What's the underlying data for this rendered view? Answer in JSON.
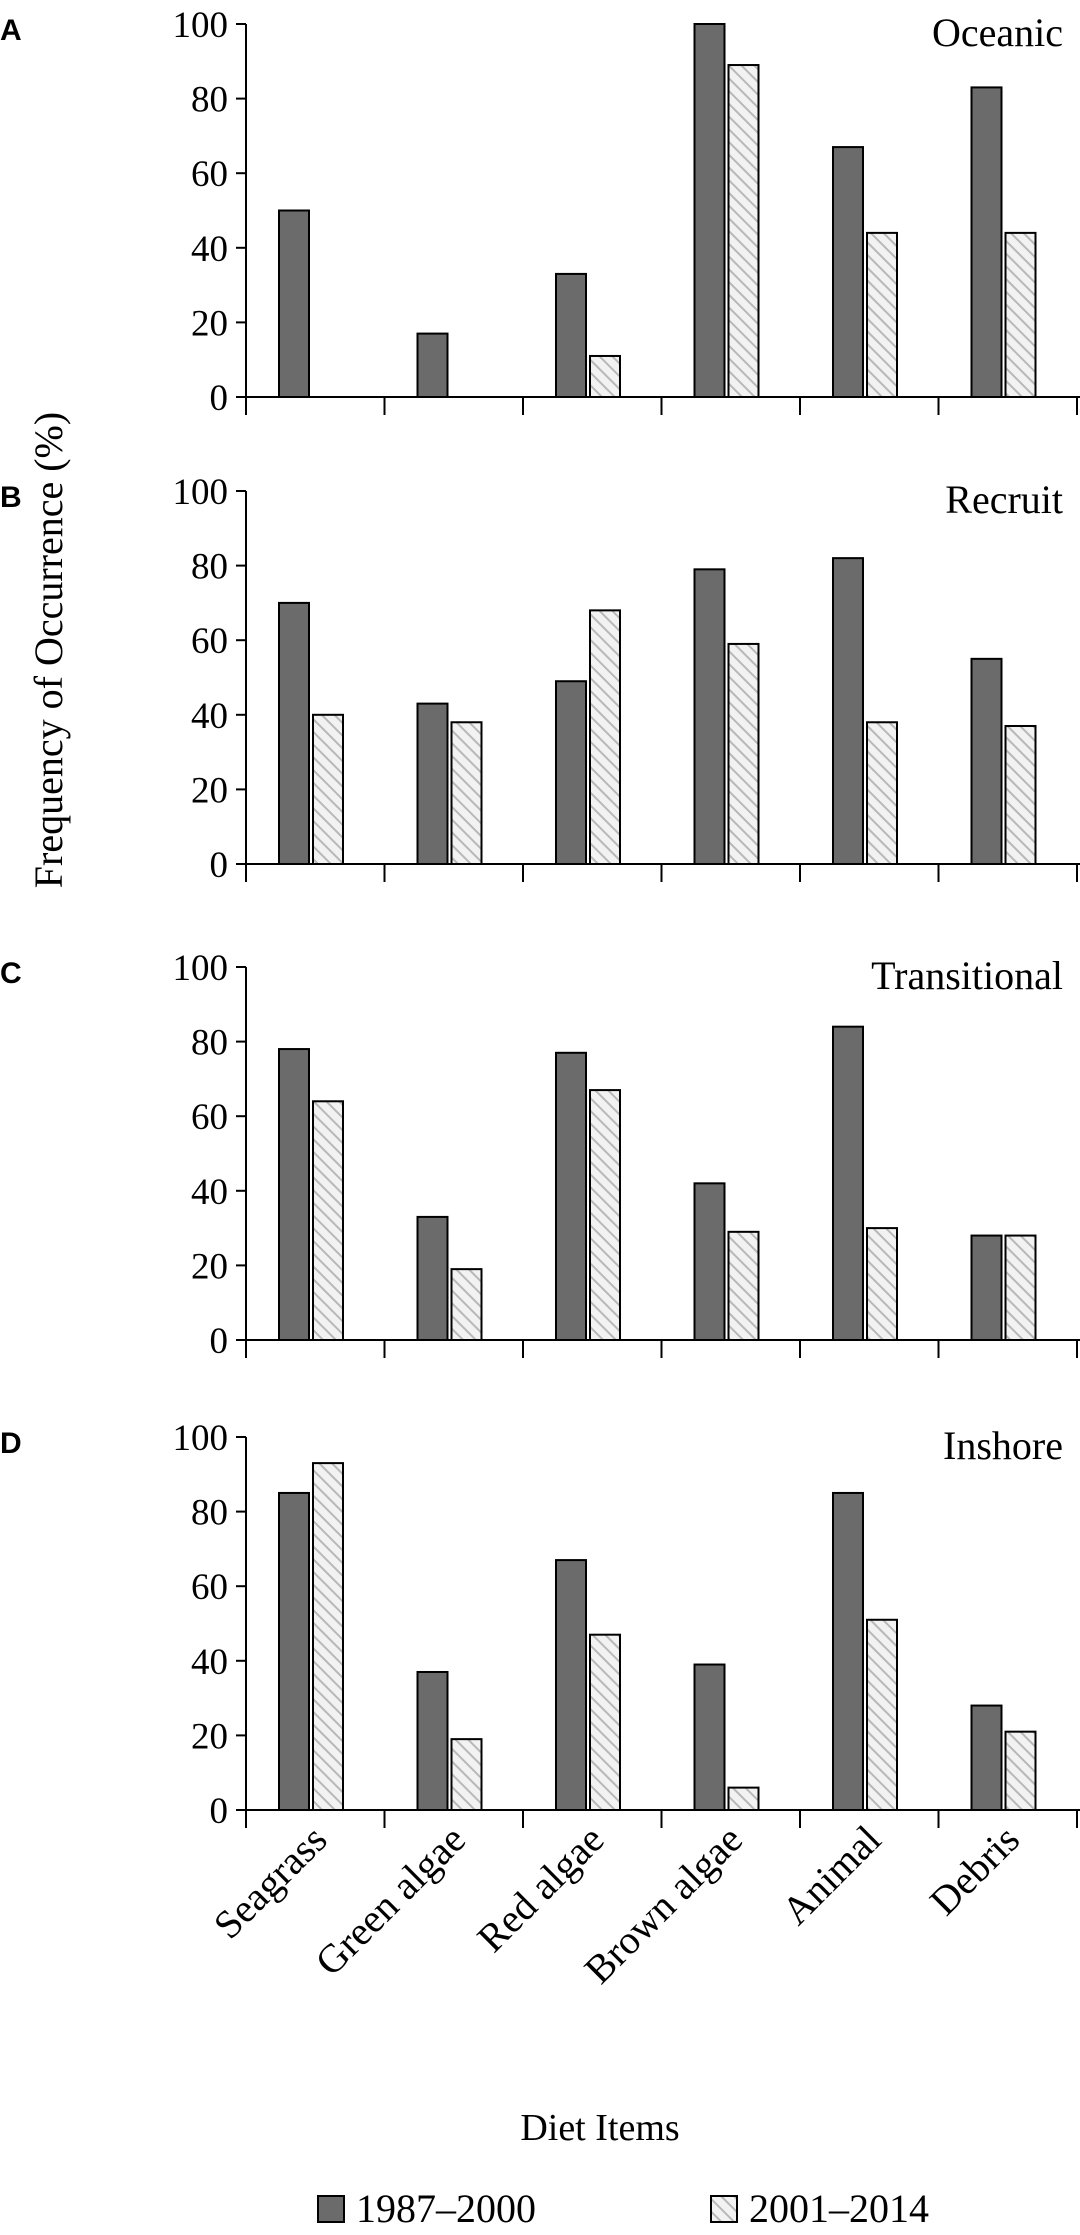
{
  "chart_data": {
    "type": "bar",
    "ylabel": "Frequency of Occurrence (%)",
    "xlabel": "Diet Items",
    "categories": [
      "Seagrass",
      "Green algae",
      "Red algae",
      "Brown algae",
      "Animal",
      "Debris"
    ],
    "yticks": [
      "0",
      "20",
      "40",
      "60",
      "80",
      "100"
    ],
    "ylim": [
      0,
      100
    ],
    "legend": [
      {
        "name": "1987–2000",
        "style": "solid-dark-gray"
      },
      {
        "name": "2001–2014",
        "style": "hatched-light-gray"
      }
    ],
    "panels": [
      {
        "letter": "A",
        "title": "Oceanic",
        "series": [
          {
            "name": "1987–2000",
            "values": [
              50,
              17,
              33,
              100,
              67,
              83
            ]
          },
          {
            "name": "2001–2014",
            "values": [
              0,
              0,
              11,
              89,
              44,
              44
            ]
          }
        ]
      },
      {
        "letter": "B",
        "title": "Recruit",
        "series": [
          {
            "name": "1987–2000",
            "values": [
              70,
              43,
              49,
              79,
              82,
              55
            ]
          },
          {
            "name": "2001–2014",
            "values": [
              40,
              38,
              68,
              59,
              38,
              37
            ]
          }
        ]
      },
      {
        "letter": "C",
        "title": "Transitional",
        "series": [
          {
            "name": "1987–2000",
            "values": [
              78,
              33,
              77,
              42,
              84,
              28
            ]
          },
          {
            "name": "2001–2014",
            "values": [
              64,
              19,
              67,
              29,
              30,
              28
            ]
          }
        ]
      },
      {
        "letter": "D",
        "title": "Inshore",
        "series": [
          {
            "name": "1987–2000",
            "values": [
              85,
              37,
              67,
              39,
              85,
              28
            ]
          },
          {
            "name": "2001–2014",
            "values": [
              93,
              19,
              47,
              6,
              51,
              21
            ]
          }
        ]
      }
    ]
  },
  "colors": {
    "series1": "#6b6b6b",
    "series2_base": "#f2f2f2",
    "series2_hatch": "#b8b8b8",
    "axis": "#000000"
  }
}
